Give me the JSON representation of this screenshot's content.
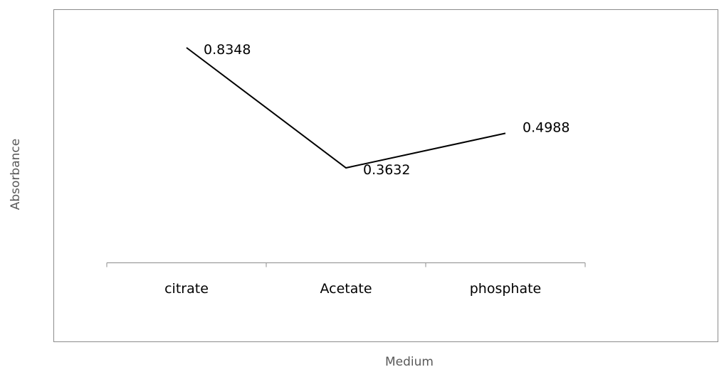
{
  "chart_data": {
    "type": "line",
    "categories": [
      "citrate",
      "Acetate",
      "phosphate"
    ],
    "values": [
      0.8348,
      0.3632,
      0.4988
    ],
    "data_labels": [
      "0.8348",
      "0.3632",
      "0.4988"
    ],
    "xlabel": "Medium",
    "ylabel": "Absorbance",
    "legend": "none",
    "grid": false,
    "y_axis_labels_shown": false,
    "colors": {
      "line": "#000000",
      "frame": "#8c8c8c",
      "axis_title": "#595959"
    }
  }
}
